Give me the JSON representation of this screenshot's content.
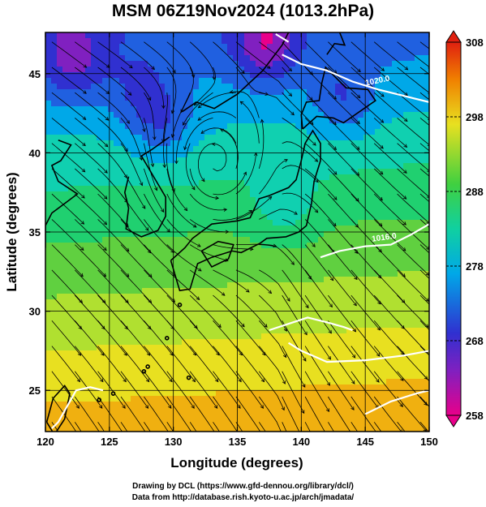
{
  "title": "MSM 06Z19Nov2024 (1013.2hPa)",
  "credit_line1": "Drawing by DCL (https://www.gfd-dennou.org/library/dcl/)",
  "credit_line2": "Data from http://database.rish.kyoto-u.ac.jp/arch/jmadata/",
  "chart_data": {
    "type": "heatmap",
    "xlabel": "Longitude (degrees)",
    "ylabel": "Latitude  (degrees)",
    "xlim": [
      120,
      150
    ],
    "ylim": [
      22.4,
      47.6
    ],
    "xticks": [
      120,
      125,
      130,
      135,
      140,
      145,
      150
    ],
    "yticks": [
      25,
      30,
      35,
      40,
      45
    ],
    "colorbar": {
      "min": 258,
      "max": 308,
      "ticks": [
        258,
        268,
        278,
        288,
        298,
        308
      ],
      "colors": [
        "#e8008a",
        "#3030d0",
        "#00b8e8",
        "#20d060",
        "#e8e020",
        "#f08000",
        "#e02010"
      ]
    },
    "contour_labels": [
      "1020.0",
      "1016.0"
    ],
    "colors": {
      "land_outline": "#000000",
      "isobar": "#ffffff",
      "streamline": "#000000"
    }
  }
}
